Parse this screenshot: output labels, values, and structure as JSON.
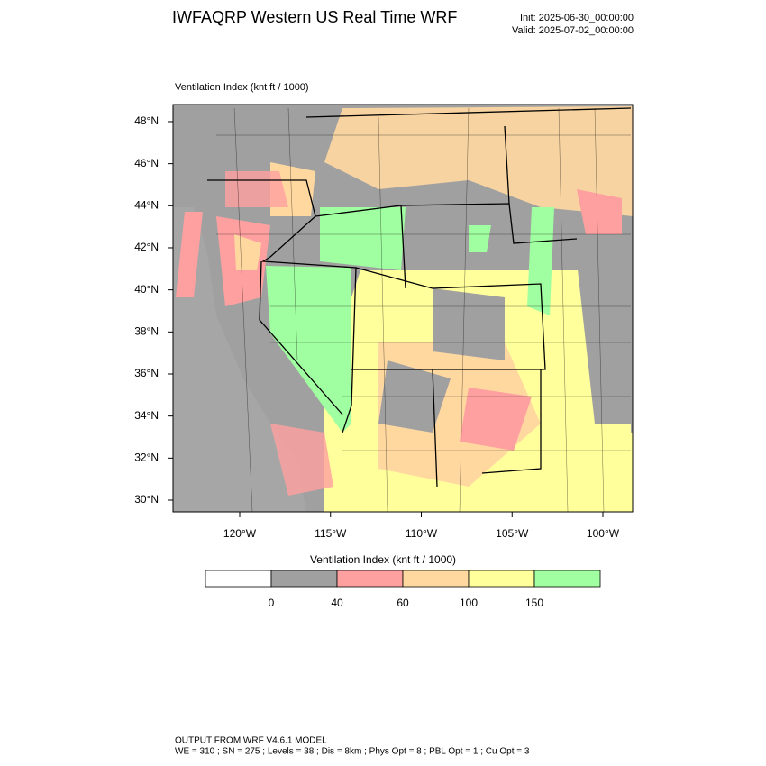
{
  "header": {
    "title": "IWFAQRP Western US Real Time WRF",
    "init": "Init: 2025-06-30_00:00:00",
    "valid": "Valid: 2025-07-02_00:00:00"
  },
  "map": {
    "title": "Ventilation Index   (knt ft / 1000)",
    "lat_labels": [
      "30°N",
      "32°N",
      "34°N",
      "36°N",
      "38°N",
      "40°N",
      "42°N",
      "44°N",
      "46°N",
      "48°N"
    ],
    "lon_labels": [
      "120°W",
      "115°W",
      "110°W",
      "105°W",
      "100°W"
    ]
  },
  "colorbar": {
    "title": "Ventilation Index  (knt ft / 1000)",
    "colors": [
      "#ffffff",
      "#a0a0a0",
      "#ffa0a0",
      "#ffd8a0",
      "#ffff9c",
      "#a0ffa0"
    ],
    "ticks": [
      0,
      40,
      60,
      100,
      150
    ]
  },
  "footer": {
    "line1": "OUTPUT FROM WRF V4.6.1 MODEL",
    "line2": "WE = 310 ; SN = 275 ; Levels = 38 ; Dis = 8km ; Phys Opt = 8 ; PBL Opt = 1 ; Cu Opt = 3"
  }
}
